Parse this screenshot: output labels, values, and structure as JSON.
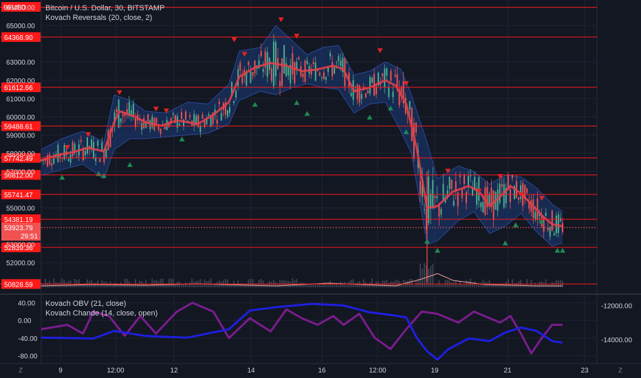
{
  "header": {
    "title": "Bitcoin / U.S. Dollar, 30, BITSTAMP",
    "indicator": "Kovach Reversals (20, close, 2)",
    "currency": "USD",
    "top_price_cut": "66"
  },
  "lower_pane": {
    "legend": [
      {
        "text": "Kovach OBV (21, close)"
      },
      {
        "text": "Kovach Chande (14, close, open)"
      }
    ]
  },
  "colors": {
    "background": "#131722",
    "grid": "#1f2432",
    "text": "#d1d4dc",
    "level_line": "#ff1a1a",
    "level_label_bg": "#ff1a1a",
    "current_price_bg": "#f05252",
    "sma": "#e0404a",
    "band_fill": "#1c3a78",
    "candle_up": "#4caf8f",
    "candle_down": "#ef5350",
    "signal_down": "#e02424",
    "signal_up": "#1f8a55",
    "obv_line": "#1f1fe0",
    "chande_line": "#7b1d8e"
  },
  "chart_data": {
    "type": "candlestick",
    "price_axis": {
      "ticks": [
        66000,
        65000,
        63000,
        62000,
        61000,
        60000,
        59000,
        58000,
        57000,
        55000,
        53000,
        52000
      ],
      "ylim": [
        50650,
        66400
      ]
    },
    "time_axis": {
      "labels": [
        "9",
        "12:00",
        "12",
        "14",
        "16",
        "12:00",
        "19",
        "21",
        "23"
      ]
    },
    "levels": [
      66000,
      64368.9,
      61612.66,
      59488.61,
      57742.49,
      56812.0,
      55741.47,
      54381.19,
      52839.36,
      50828.59
    ],
    "level_labels": [
      "",
      "64368.90",
      "61612.66",
      "59488.61",
      "57742.49",
      "56812.00",
      "55741.47",
      "54381.19",
      "52839.36",
      "50828.59"
    ],
    "current_price": {
      "value": 53923.79,
      "label": "53923.79",
      "countdown": "29:51"
    },
    "sma_path": [
      [
        0,
        57600
      ],
      [
        0.03,
        57900
      ],
      [
        0.06,
        58050
      ],
      [
        0.09,
        58300
      ],
      [
        0.12,
        58100
      ],
      [
        0.14,
        59700
      ],
      [
        0.15,
        60300
      ],
      [
        0.18,
        60000
      ],
      [
        0.2,
        59700
      ],
      [
        0.23,
        59500
      ],
      [
        0.26,
        59800
      ],
      [
        0.3,
        59600
      ],
      [
        0.33,
        60100
      ],
      [
        0.36,
        60800
      ],
      [
        0.38,
        62200
      ],
      [
        0.41,
        62700
      ],
      [
        0.44,
        62950
      ],
      [
        0.47,
        62800
      ],
      [
        0.5,
        62500
      ],
      [
        0.53,
        62600
      ],
      [
        0.56,
        62800
      ],
      [
        0.58,
        62600
      ],
      [
        0.6,
        61400
      ],
      [
        0.63,
        61600
      ],
      [
        0.66,
        62000
      ],
      [
        0.68,
        61700
      ],
      [
        0.7,
        60700
      ],
      [
        0.72,
        58300
      ],
      [
        0.74,
        55000
      ],
      [
        0.76,
        55100
      ],
      [
        0.79,
        55900
      ],
      [
        0.82,
        56200
      ],
      [
        0.84,
        55900
      ],
      [
        0.86,
        55100
      ],
      [
        0.88,
        55600
      ],
      [
        0.9,
        56200
      ],
      [
        0.92,
        55800
      ],
      [
        0.94,
        55200
      ],
      [
        0.96,
        54600
      ],
      [
        0.98,
        54100
      ],
      [
        1.0,
        54000
      ]
    ],
    "band_upper": [
      [
        0,
        58200
      ],
      [
        0.04,
        58800
      ],
      [
        0.08,
        59200
      ],
      [
        0.12,
        58600
      ],
      [
        0.14,
        61200
      ],
      [
        0.17,
        60900
      ],
      [
        0.2,
        60300
      ],
      [
        0.24,
        60200
      ],
      [
        0.28,
        60800
      ],
      [
        0.32,
        60700
      ],
      [
        0.36,
        61800
      ],
      [
        0.38,
        63600
      ],
      [
        0.42,
        63800
      ],
      [
        0.45,
        65000
      ],
      [
        0.48,
        64200
      ],
      [
        0.51,
        63400
      ],
      [
        0.54,
        63800
      ],
      [
        0.57,
        63900
      ],
      [
        0.6,
        62300
      ],
      [
        0.63,
        62500
      ],
      [
        0.66,
        63000
      ],
      [
        0.69,
        62600
      ],
      [
        0.71,
        61200
      ],
      [
        0.74,
        58600
      ],
      [
        0.76,
        56600
      ],
      [
        0.8,
        57300
      ],
      [
        0.83,
        57000
      ],
      [
        0.86,
        56300
      ],
      [
        0.89,
        56800
      ],
      [
        0.92,
        56700
      ],
      [
        0.95,
        56100
      ],
      [
        0.98,
        55200
      ],
      [
        1.0,
        54800
      ]
    ],
    "band_lower": [
      [
        0,
        56800
      ],
      [
        0.04,
        57100
      ],
      [
        0.08,
        57400
      ],
      [
        0.12,
        56600
      ],
      [
        0.14,
        58200
      ],
      [
        0.17,
        58800
      ],
      [
        0.2,
        58800
      ],
      [
        0.24,
        58900
      ],
      [
        0.28,
        59000
      ],
      [
        0.32,
        59100
      ],
      [
        0.36,
        59600
      ],
      [
        0.38,
        60900
      ],
      [
        0.42,
        61400
      ],
      [
        0.45,
        61200
      ],
      [
        0.48,
        61600
      ],
      [
        0.51,
        61800
      ],
      [
        0.54,
        61600
      ],
      [
        0.57,
        61500
      ],
      [
        0.6,
        60200
      ],
      [
        0.63,
        60700
      ],
      [
        0.66,
        60800
      ],
      [
        0.69,
        59200
      ],
      [
        0.71,
        58000
      ],
      [
        0.74,
        53000
      ],
      [
        0.76,
        53200
      ],
      [
        0.8,
        54300
      ],
      [
        0.83,
        54800
      ],
      [
        0.86,
        53600
      ],
      [
        0.89,
        54000
      ],
      [
        0.92,
        54700
      ],
      [
        0.95,
        53700
      ],
      [
        0.98,
        52900
      ],
      [
        1.0,
        53100
      ]
    ],
    "signals_down": [
      [
        0.05,
        58300
      ],
      [
        0.09,
        59000
      ],
      [
        0.15,
        61300
      ],
      [
        0.22,
        60400
      ],
      [
        0.24,
        60300
      ],
      [
        0.37,
        64200
      ],
      [
        0.39,
        63400
      ],
      [
        0.46,
        65300
      ],
      [
        0.49,
        64400
      ],
      [
        0.65,
        63600
      ],
      [
        0.7,
        61800
      ],
      [
        0.78,
        57000
      ],
      [
        0.84,
        55900
      ],
      [
        0.88,
        56700
      ],
      [
        0.92,
        55700
      ],
      [
        0.96,
        55500
      ]
    ],
    "signals_up": [
      [
        0.04,
        56700
      ],
      [
        0.11,
        56900
      ],
      [
        0.12,
        56800
      ],
      [
        0.17,
        57400
      ],
      [
        0.27,
        58800
      ],
      [
        0.41,
        60700
      ],
      [
        0.49,
        60800
      ],
      [
        0.51,
        60200
      ],
      [
        0.63,
        60000
      ],
      [
        0.67,
        60500
      ],
      [
        0.7,
        59200
      ],
      [
        0.74,
        53200
      ],
      [
        0.76,
        52700
      ],
      [
        0.89,
        53100
      ],
      [
        0.91,
        54100
      ],
      [
        0.96,
        54300
      ],
      [
        0.99,
        52700
      ],
      [
        1.0,
        52700
      ]
    ],
    "oscillator": {
      "left_axis": {
        "ticks": [
          40,
          0,
          -40,
          -80
        ],
        "labels": [
          "40.00",
          "0.00",
          "-40.00",
          "-80.00"
        ],
        "ylim": [
          -95,
          55
        ]
      },
      "right_axis": {
        "ticks": [
          -12000,
          -14000
        ],
        "labels": [
          "-12000.00",
          "-14000.00"
        ],
        "ylim": [
          -15350,
          -11450
        ]
      },
      "obv": [
        [
          0,
          -13900
        ],
        [
          0.1,
          -13950
        ],
        [
          0.14,
          -13500
        ],
        [
          0.2,
          -13800
        ],
        [
          0.28,
          -13900
        ],
        [
          0.36,
          -13400
        ],
        [
          0.4,
          -12300
        ],
        [
          0.45,
          -12100
        ],
        [
          0.52,
          -11900
        ],
        [
          0.58,
          -12000
        ],
        [
          0.63,
          -12400
        ],
        [
          0.68,
          -12600
        ],
        [
          0.7,
          -12700
        ],
        [
          0.72,
          -13900
        ],
        [
          0.74,
          -14700
        ],
        [
          0.76,
          -15200
        ],
        [
          0.78,
          -14600
        ],
        [
          0.82,
          -13950
        ],
        [
          0.86,
          -14100
        ],
        [
          0.89,
          -13600
        ],
        [
          0.92,
          -13300
        ],
        [
          0.95,
          -13500
        ],
        [
          0.98,
          -14100
        ],
        [
          1.0,
          -14200
        ]
      ],
      "chande": [
        [
          0,
          -20
        ],
        [
          0.05,
          -10
        ],
        [
          0.08,
          -30
        ],
        [
          0.1,
          20
        ],
        [
          0.13,
          10
        ],
        [
          0.16,
          -35
        ],
        [
          0.19,
          10
        ],
        [
          0.22,
          -30
        ],
        [
          0.26,
          20
        ],
        [
          0.29,
          40
        ],
        [
          0.33,
          20
        ],
        [
          0.36,
          -40
        ],
        [
          0.4,
          5
        ],
        [
          0.44,
          -25
        ],
        [
          0.47,
          25
        ],
        [
          0.5,
          5
        ],
        [
          0.53,
          -10
        ],
        [
          0.56,
          10
        ],
        [
          0.58,
          -10
        ],
        [
          0.61,
          15
        ],
        [
          0.64,
          -40
        ],
        [
          0.67,
          -65
        ],
        [
          0.7,
          -20
        ],
        [
          0.73,
          20
        ],
        [
          0.76,
          15
        ],
        [
          0.8,
          -5
        ],
        [
          0.83,
          20
        ],
        [
          0.86,
          5
        ],
        [
          0.88,
          -5
        ],
        [
          0.9,
          10
        ],
        [
          0.92,
          -30
        ],
        [
          0.94,
          -75
        ],
        [
          0.96,
          -40
        ],
        [
          0.98,
          -10
        ],
        [
          1.0,
          -10
        ]
      ]
    }
  },
  "footer": {
    "tz_left": "Z",
    "tz_right": "Z"
  }
}
